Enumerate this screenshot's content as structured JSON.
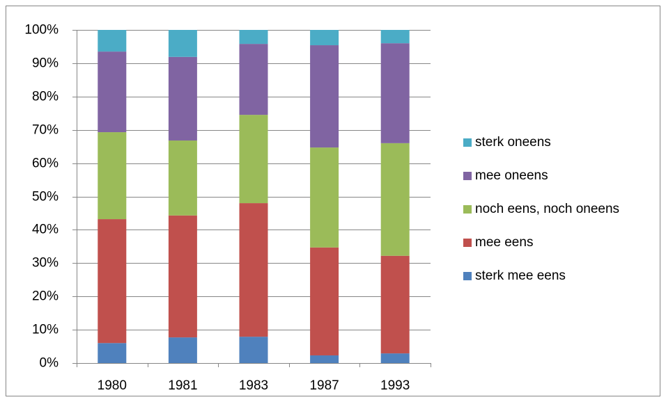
{
  "chart_data": {
    "type": "stacked_bar",
    "categories": [
      "1980",
      "1981",
      "1983",
      "1987",
      "1993"
    ],
    "series": [
      {
        "name": "sterk mee eens",
        "color": "#4f81bd",
        "values": [
          6.0,
          7.7,
          7.9,
          2.3,
          2.9
        ]
      },
      {
        "name": "mee eens",
        "color": "#c0504d",
        "values": [
          37.2,
          36.6,
          40.1,
          32.4,
          29.3
        ]
      },
      {
        "name": "noch eens, noch oneens",
        "color": "#9bbb59",
        "values": [
          26.1,
          22.5,
          26.5,
          30.0,
          33.8
        ]
      },
      {
        "name": "mee oneens",
        "color": "#8064a2",
        "values": [
          24.2,
          25.1,
          21.3,
          30.7,
          30.0
        ]
      },
      {
        "name": "sterk oneens",
        "color": "#4bacc6",
        "values": [
          6.5,
          8.1,
          4.2,
          4.6,
          4.0
        ]
      }
    ],
    "ylim": [
      0,
      100
    ],
    "yticks": [
      {
        "value": 0,
        "label": "0%"
      },
      {
        "value": 10,
        "label": "10%"
      },
      {
        "value": 20,
        "label": "20%"
      },
      {
        "value": 30,
        "label": "30%"
      },
      {
        "value": 40,
        "label": "40%"
      },
      {
        "value": 50,
        "label": "50%"
      },
      {
        "value": 60,
        "label": "60%"
      },
      {
        "value": 70,
        "label": "70%"
      },
      {
        "value": 80,
        "label": "80%"
      },
      {
        "value": 90,
        "label": "90%"
      },
      {
        "value": 100,
        "label": "100%"
      }
    ],
    "grid": true,
    "legend": "right"
  }
}
